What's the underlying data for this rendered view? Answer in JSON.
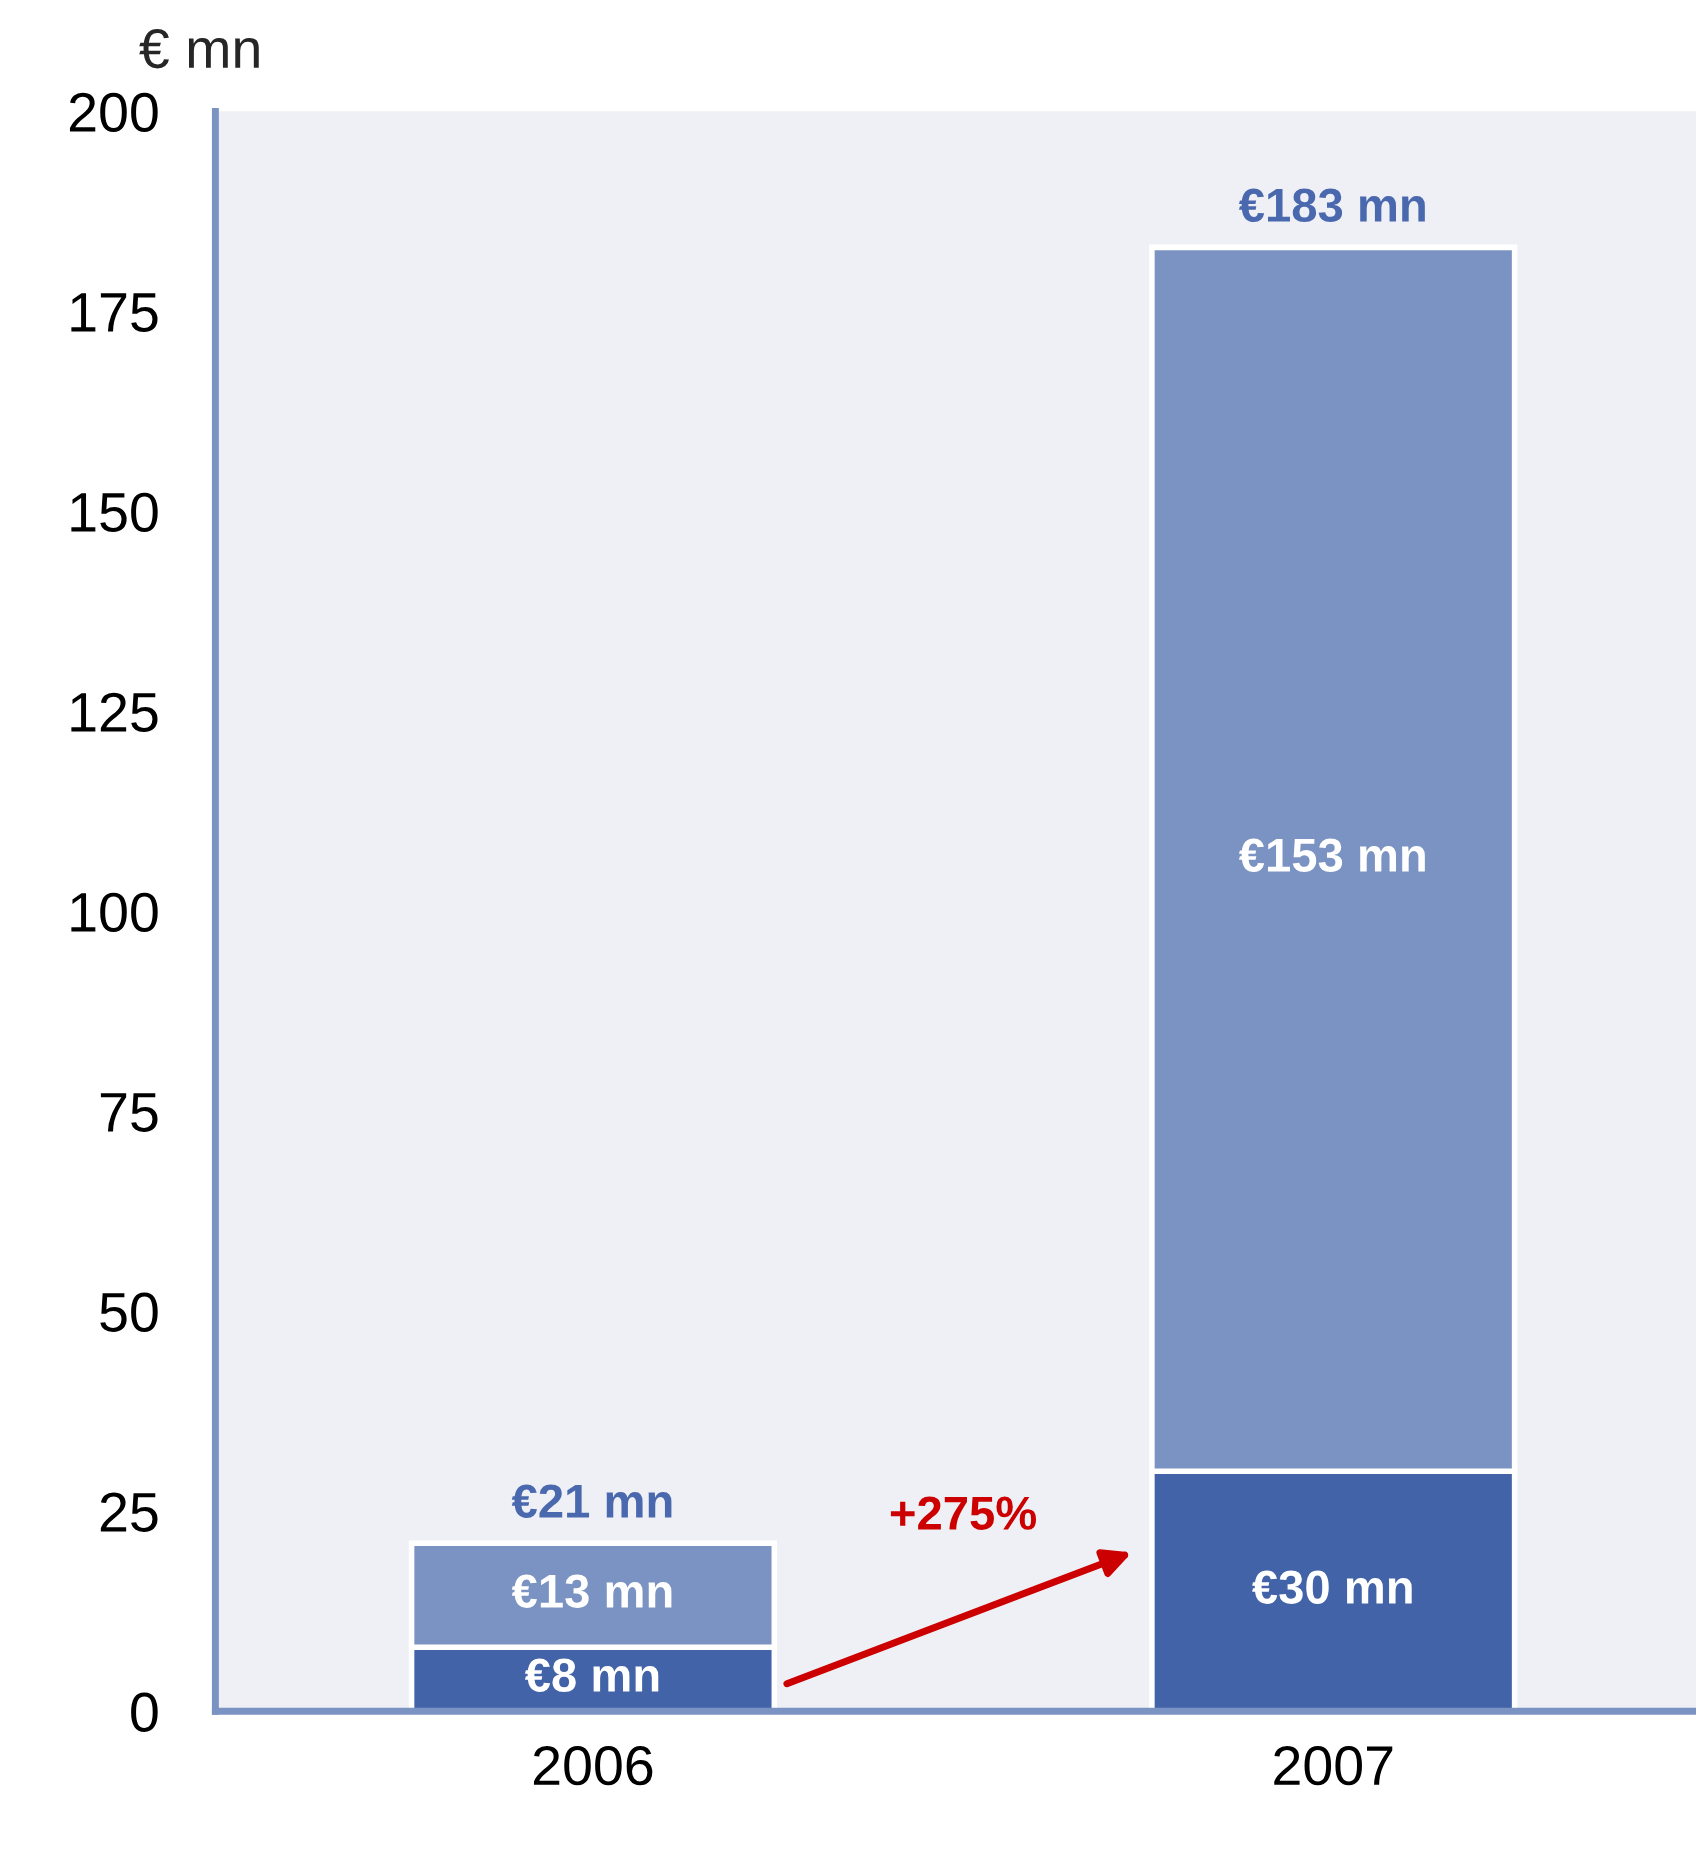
{
  "chart_data": {
    "type": "bar",
    "stacked": true,
    "ylabel": "€ mn",
    "categories": [
      "2006",
      "2007"
    ],
    "series": [
      {
        "color": "#4263a8",
        "values": [
          8,
          30
        ],
        "value_labels": [
          "€8 mn",
          "€30 mn"
        ]
      },
      {
        "color": "#7b93c3",
        "values": [
          13,
          153
        ],
        "value_labels": [
          "€13 mn",
          "€153 mn"
        ]
      }
    ],
    "totals": [
      "€21 mn",
      "€183 mn"
    ],
    "annotations": [
      "+275%"
    ],
    "ylim": [
      0,
      200
    ],
    "yticks": [
      0,
      25,
      50,
      75,
      100,
      125,
      150,
      175,
      200
    ],
    "grid": false,
    "legend": false
  }
}
